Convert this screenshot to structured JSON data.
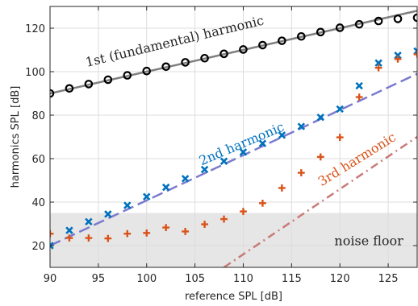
{
  "chart_data": {
    "type": "scatter",
    "xlabel": "reference SPL [dB]",
    "ylabel": "harmonics SPL [dB]",
    "xlim": [
      90,
      128
    ],
    "ylim": [
      10,
      130
    ],
    "xticks": [
      90,
      95,
      100,
      105,
      110,
      115,
      120,
      125
    ],
    "yticks": [
      20,
      40,
      60,
      80,
      100,
      120
    ],
    "grid": true,
    "noise_floor": {
      "label": "noise floor",
      "ymax": 35,
      "color": "#e6e6e6"
    },
    "series": [
      {
        "name": "1st (fundamental) harmonic",
        "marker": "circle",
        "color": "#000000",
        "line_color": "#808080",
        "x": [
          90,
          92,
          94,
          96,
          98,
          100,
          102,
          104,
          106,
          108,
          110,
          112,
          114,
          116,
          118,
          120,
          122,
          124,
          126,
          128
        ],
        "y": [
          90,
          92.3,
          94.3,
          96.3,
          98.3,
          100.3,
          102.3,
          104.3,
          106.2,
          108.2,
          110.2,
          112.2,
          114.2,
          116.2,
          118.2,
          120.2,
          121.8,
          123.3,
          124.3,
          124.8
        ],
        "reference_line": [
          [
            90,
            90
          ],
          [
            128,
            128
          ]
        ]
      },
      {
        "name": "2nd harmonic",
        "marker": "x",
        "color": "#0072BD",
        "line_color": "#7B7BCE",
        "x": [
          90,
          92,
          94,
          96,
          98,
          100,
          102,
          104,
          106,
          108,
          110,
          112,
          114,
          116,
          118,
          120,
          122,
          124,
          126,
          128
        ],
        "y": [
          20,
          27,
          31,
          34.5,
          38.5,
          42.5,
          46.8,
          50.8,
          55,
          58.8,
          63,
          67,
          70.8,
          74.8,
          79,
          82.8,
          93.5,
          104,
          107.5,
          109.5
        ],
        "reference_line": [
          [
            90,
            20
          ],
          [
            128,
            99
          ]
        ]
      },
      {
        "name": "3rd harmonic",
        "marker": "plus",
        "color": "#D95319",
        "line_color": "#C97A78",
        "x": [
          90,
          92,
          94,
          96,
          98,
          100,
          102,
          104,
          106,
          108,
          110,
          112,
          114,
          116,
          118,
          120,
          122,
          124,
          126,
          128
        ],
        "y": [
          25.5,
          23.5,
          23.5,
          23.3,
          25.5,
          25.8,
          28.3,
          26.5,
          29.8,
          32.2,
          35.7,
          39.5,
          46.5,
          53.5,
          60.8,
          69.8,
          88.3,
          101.8,
          105.8,
          108
        ],
        "reference_line": [
          [
            108,
            10
          ],
          [
            128,
            70
          ]
        ]
      }
    ]
  }
}
